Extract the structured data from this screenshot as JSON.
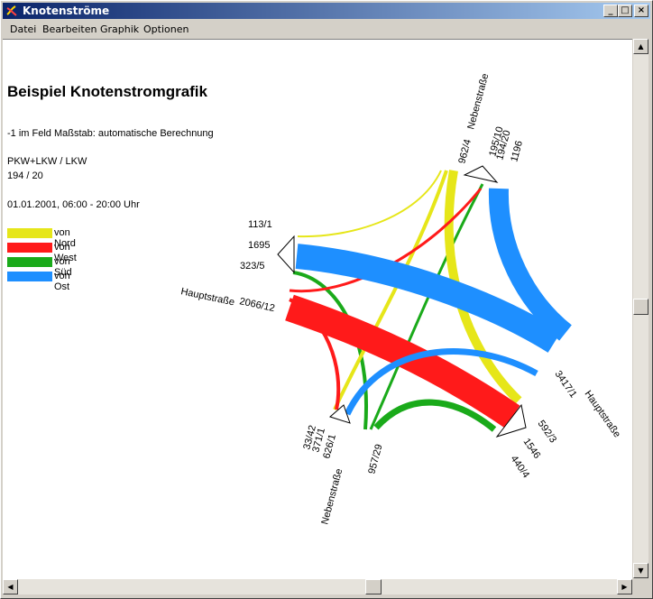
{
  "window": {
    "title": "Knotenströme",
    "min_label": "_",
    "max_label": "□",
    "close_label": "×"
  },
  "menu": [
    "Datei",
    "Bearbeiten",
    "Graphik",
    "Optionen"
  ],
  "graphic": {
    "heading": "Beispiel Knotenstromgrafik",
    "scale_note": "-1 im Feld Maßstab: automatische Berechnung",
    "vehicle_type": "PKW+LKW / LKW",
    "vehicle_values": "194 / 20",
    "time_range": "01.01.2001, 06:00 - 20:00 Uhr",
    "legend": [
      {
        "label": "von Nord",
        "color": "#e6e619"
      },
      {
        "label": "von West",
        "color": "#ff1a1a"
      },
      {
        "label": "von Süd",
        "color": "#1aaa1a"
      },
      {
        "label": "von Ost",
        "color": "#1e8fff"
      }
    ],
    "arms": {
      "north": {
        "name": "Nebenstraße",
        "in": "962/4",
        "out_values": [
          "195/10",
          "194/20",
          "1196"
        ]
      },
      "west": {
        "name": "Hauptstraße",
        "in": "2066/12",
        "out_values": [
          "113/1",
          "1695",
          "323/5"
        ]
      },
      "east": {
        "name": "Hauptstraße",
        "in": "3417/1",
        "out_values": [
          "592/3",
          "1546",
          "440/4"
        ]
      },
      "south": {
        "name": "Nebenstraße",
        "in": "957/29",
        "out_values": [
          "33/42",
          "371/1",
          "626/1"
        ]
      }
    }
  }
}
